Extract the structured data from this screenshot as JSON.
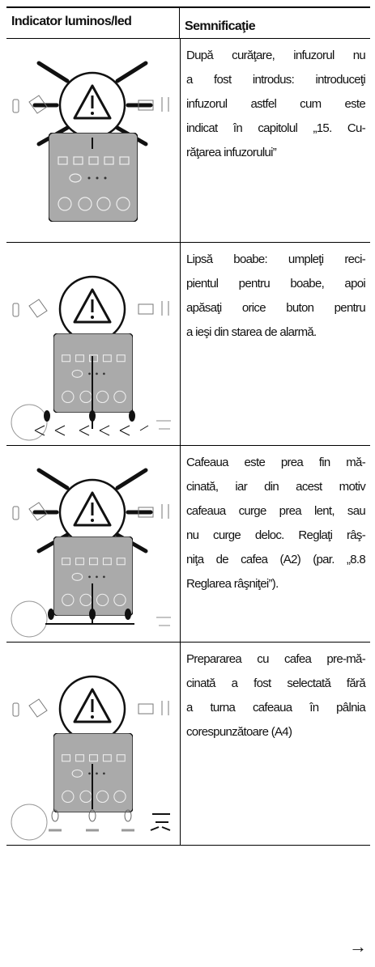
{
  "header": {
    "col1": "Indicator luminos/led",
    "col2": "Semnificaţie"
  },
  "rows": [
    {
      "lines": [
        "După curăţare, infuzorul nu",
        "a fost introdus: introduceţi",
        "infuzorul astfel cum este",
        "indicat în capitolul „15. Cu-",
        "răţarea infuzorului”"
      ]
    },
    {
      "lines": [
        "Lipsă boabe: umpleţi reci-",
        "pientul pentru boabe, apoi",
        "apăsaţi orice buton pentru",
        "a ieşi din starea de alarmă."
      ]
    },
    {
      "lines": [
        "Cafeaua este prea fin mă-",
        "cinată, iar din acest motiv",
        "cafeaua curge prea lent, sau",
        "nu curge deloc. Reglaţi râş-",
        "niţa de cafea (A2) (par. „8.8",
        "Reglarea râşniţei”)."
      ]
    },
    {
      "lines": [
        "Prepararea cu cafea pre-mă-",
        "cinată a fost selectată fără",
        "a turna cafeaua în pâlnia",
        "corespunzătoare (A4)"
      ]
    }
  ],
  "footer": {
    "arrow": "→"
  }
}
